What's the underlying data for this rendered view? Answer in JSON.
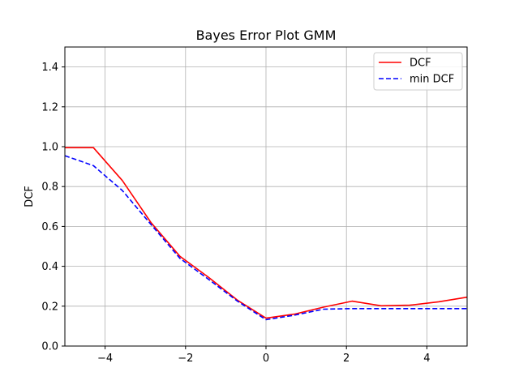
{
  "chart_data": {
    "type": "line",
    "title": "Bayes Error Plot GMM",
    "xlabel": "",
    "ylabel": "DCF",
    "xlim": [
      -5,
      5
    ],
    "ylim": [
      0,
      1.5
    ],
    "xticks": [
      -4,
      -2,
      0,
      2,
      4
    ],
    "xtick_labels": [
      "−4",
      "−2",
      "0",
      "2",
      "4"
    ],
    "yticks": [
      0.0,
      0.2,
      0.4,
      0.6,
      0.8,
      1.0,
      1.2,
      1.4
    ],
    "ytick_labels": [
      "0.0",
      "0.2",
      "0.4",
      "0.6",
      "0.8",
      "1.0",
      "1.2",
      "1.4"
    ],
    "grid": true,
    "legend_position": "top-right",
    "series": [
      {
        "name": "DCF",
        "color": "#ff0000",
        "style": "solid",
        "x": [
          -5.0,
          -4.29,
          -3.57,
          -2.86,
          -2.14,
          -1.43,
          -0.71,
          0.0,
          0.71,
          1.43,
          2.14,
          2.86,
          3.57,
          4.29,
          5.0
        ],
        "y": [
          0.995,
          0.995,
          0.83,
          0.62,
          0.45,
          0.345,
          0.23,
          0.14,
          0.16,
          0.195,
          0.225,
          0.202,
          0.205,
          0.222,
          0.245
        ]
      },
      {
        "name": "min DCF",
        "color": "#0000ff",
        "style": "dashed",
        "x": [
          -5.0,
          -4.29,
          -3.57,
          -2.86,
          -2.14,
          -1.43,
          -0.71,
          0.0,
          0.71,
          1.43,
          2.14,
          2.86,
          3.57,
          4.29,
          5.0
        ],
        "y": [
          0.955,
          0.905,
          0.78,
          0.61,
          0.44,
          0.335,
          0.225,
          0.132,
          0.155,
          0.185,
          0.188,
          0.188,
          0.188,
          0.188,
          0.188
        ]
      }
    ]
  }
}
